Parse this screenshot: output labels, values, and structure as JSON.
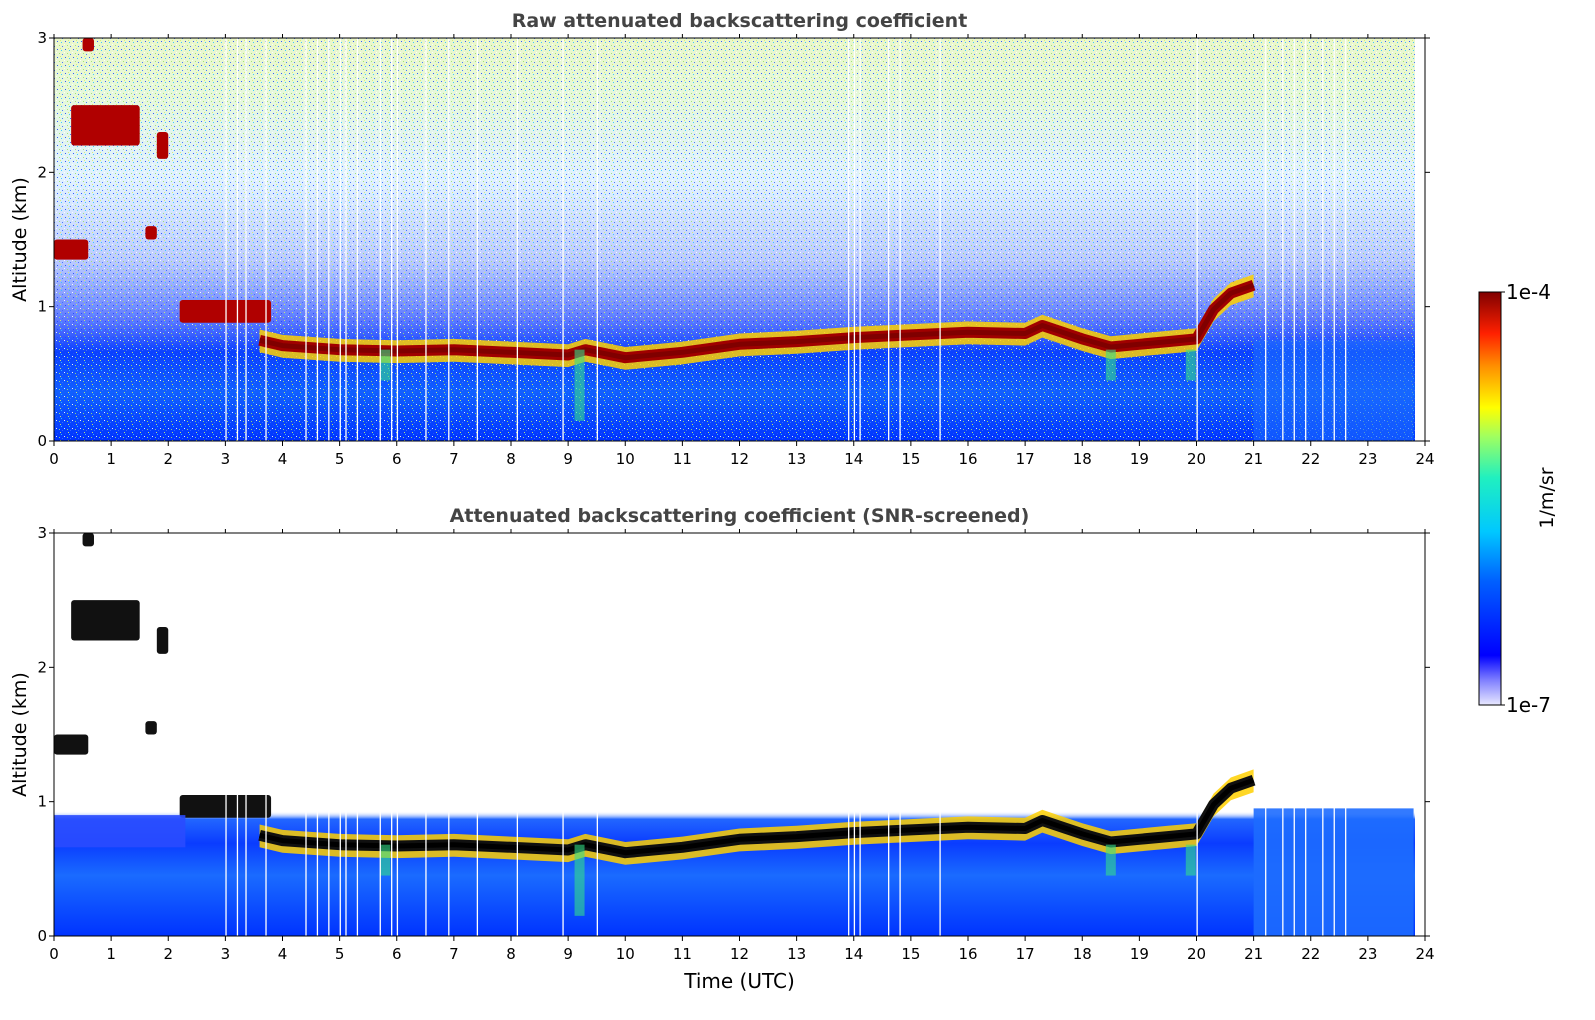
{
  "figure": {
    "xlabel": "Time (UTC)"
  },
  "colorbar": {
    "label": "1/m/sr",
    "max_label": "1e-4",
    "min_label": "1e-7",
    "colormap": "jet",
    "scale": "log",
    "min": 1e-07,
    "max": 0.0001
  },
  "chart_data": [
    {
      "type": "heatmap",
      "title": "Raw attenuated backscattering coefficient",
      "xlabel": "",
      "ylabel": "Altitude (km)",
      "xlim": [
        0,
        24
      ],
      "ylim": [
        0,
        3
      ],
      "x_ticks": [
        "0",
        "1",
        "2",
        "3",
        "4",
        "5",
        "6",
        "7",
        "8",
        "9",
        "10",
        "11",
        "12",
        "13",
        "14",
        "15",
        "16",
        "17",
        "18",
        "19",
        "20",
        "21",
        "22",
        "23",
        "24"
      ],
      "y_ticks": [
        "0",
        "1",
        "2",
        "3"
      ],
      "boundary_layer_top_km": {
        "x": [
          3.6,
          4.0,
          5.0,
          6.0,
          7.0,
          8.0,
          9.0,
          9.3,
          10.0,
          11.0,
          12.0,
          13.0,
          14.0,
          15.0,
          16.0,
          17.0,
          17.3,
          18.0,
          18.5,
          19.0,
          19.5,
          20.0,
          20.3,
          20.6,
          21.0
        ],
        "y": [
          0.75,
          0.71,
          0.68,
          0.67,
          0.68,
          0.66,
          0.64,
          0.68,
          0.62,
          0.66,
          0.72,
          0.74,
          0.77,
          0.79,
          0.81,
          0.8,
          0.86,
          0.76,
          0.7,
          0.72,
          0.74,
          0.76,
          0.98,
          1.1,
          1.16
        ]
      },
      "cloud_layers": [
        {
          "x_range": [
            0.5,
            0.7
          ],
          "y_range": [
            2.9,
            3.0
          ]
        },
        {
          "x_range": [
            0.3,
            1.5
          ],
          "y_range": [
            2.2,
            2.5
          ]
        },
        {
          "x_range": [
            1.8,
            2.0
          ],
          "y_range": [
            2.1,
            2.3
          ]
        },
        {
          "x_range": [
            0.0,
            0.6
          ],
          "y_range": [
            1.35,
            1.5
          ]
        },
        {
          "x_range": [
            1.6,
            1.8
          ],
          "y_range": [
            1.5,
            1.6
          ]
        },
        {
          "x_range": [
            2.2,
            3.8
          ],
          "y_range": [
            0.88,
            1.05
          ]
        }
      ]
    },
    {
      "type": "heatmap",
      "title": "Attenuated backscattering coefficient (SNR-screened)",
      "xlabel": "Time (UTC)",
      "ylabel": "Altitude (km)",
      "xlim": [
        0,
        24
      ],
      "ylim": [
        0,
        3
      ],
      "x_ticks": [
        "0",
        "1",
        "2",
        "3",
        "4",
        "5",
        "6",
        "7",
        "8",
        "9",
        "10",
        "11",
        "12",
        "13",
        "14",
        "15",
        "16",
        "17",
        "18",
        "19",
        "20",
        "21",
        "22",
        "23",
        "24"
      ],
      "y_ticks": [
        "0",
        "1",
        "2",
        "3"
      ],
      "boundary_layer_top_km": {
        "x": [
          3.6,
          4.0,
          5.0,
          6.0,
          7.0,
          8.0,
          9.0,
          9.3,
          10.0,
          11.0,
          12.0,
          13.0,
          14.0,
          15.0,
          16.0,
          17.0,
          17.3,
          18.0,
          18.5,
          19.0,
          19.5,
          20.0,
          20.3,
          20.6,
          21.0
        ],
        "y": [
          0.75,
          0.71,
          0.68,
          0.67,
          0.68,
          0.66,
          0.64,
          0.68,
          0.62,
          0.66,
          0.72,
          0.74,
          0.77,
          0.79,
          0.81,
          0.8,
          0.86,
          0.76,
          0.7,
          0.72,
          0.74,
          0.76,
          0.98,
          1.1,
          1.16
        ]
      }
    }
  ]
}
